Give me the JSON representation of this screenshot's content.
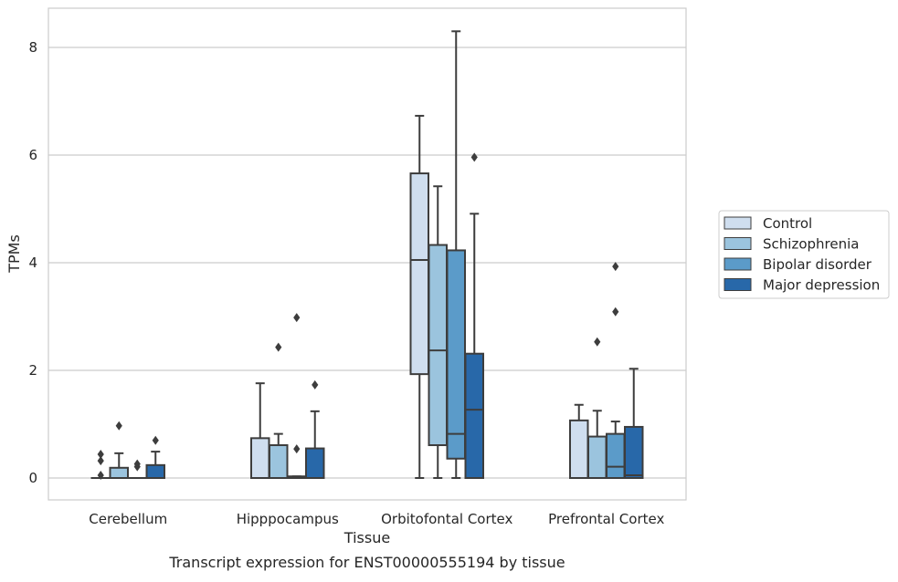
{
  "chart_data": {
    "type": "box",
    "caption": "Transcript expression for ENST00000555194 by tissue",
    "xlabel": "Tissue",
    "ylabel": "TPMs",
    "ylim": [
      -0.4,
      8.75
    ],
    "yticks": [
      0,
      2,
      4,
      6,
      8
    ],
    "grid": "horizontal",
    "legend_position": "right",
    "categories": [
      "Cerebellum",
      "Hipppocampus",
      "Orbitofontal Cortex",
      "Prefrontal Cortex"
    ],
    "series": [
      {
        "name": "Control",
        "color": "#cfdeef",
        "boxes": [
          {
            "q1": 0,
            "median": 0,
            "q3": 0,
            "whisker_low": 0,
            "whisker_high": 0,
            "outliers": [
              0.05,
              0.32,
              0.44
            ]
          },
          {
            "q1": 0,
            "median": 0,
            "q3": 0.74,
            "whisker_low": 0,
            "whisker_high": 1.76,
            "outliers": []
          },
          {
            "q1": 1.93,
            "median": 4.05,
            "q3": 5.66,
            "whisker_low": 0,
            "whisker_high": 6.73,
            "outliers": []
          },
          {
            "q1": 0,
            "median": 0,
            "q3": 1.07,
            "whisker_low": 0,
            "whisker_high": 1.36,
            "outliers": []
          }
        ]
      },
      {
        "name": "Schizophrenia",
        "color": "#9bc4de",
        "boxes": [
          {
            "q1": 0,
            "median": 0,
            "q3": 0.19,
            "whisker_low": 0,
            "whisker_high": 0.46,
            "outliers": [
              0.97
            ]
          },
          {
            "q1": 0,
            "median": 0,
            "q3": 0.61,
            "whisker_low": 0,
            "whisker_high": 0.82,
            "outliers": [
              2.43
            ]
          },
          {
            "q1": 0.61,
            "median": 2.37,
            "q3": 4.33,
            "whisker_low": 0,
            "whisker_high": 5.42,
            "outliers": []
          },
          {
            "q1": 0,
            "median": 0,
            "q3": 0.77,
            "whisker_low": 0,
            "whisker_high": 1.25,
            "outliers": [
              2.53
            ]
          }
        ]
      },
      {
        "name": "Bipolar disorder",
        "color": "#5b9bc9",
        "boxes": [
          {
            "q1": 0,
            "median": 0,
            "q3": 0,
            "whisker_low": 0,
            "whisker_high": 0,
            "outliers": [
              0.21,
              0.26
            ]
          },
          {
            "q1": 0,
            "median": 0.02,
            "q3": 0.03,
            "whisker_low": 0,
            "whisker_high": 0.03,
            "outliers": [
              0.54,
              2.98
            ]
          },
          {
            "q1": 0.36,
            "median": 0.82,
            "q3": 4.23,
            "whisker_low": 0,
            "whisker_high": 8.3,
            "outliers": []
          },
          {
            "q1": 0,
            "median": 0.21,
            "q3": 0.82,
            "whisker_low": 0,
            "whisker_high": 1.05,
            "outliers": [
              3.09,
              3.93
            ]
          }
        ]
      },
      {
        "name": "Major depression",
        "color": "#2868a9",
        "boxes": [
          {
            "q1": 0,
            "median": 0,
            "q3": 0.24,
            "whisker_low": 0,
            "whisker_high": 0.49,
            "outliers": [
              0.7
            ]
          },
          {
            "q1": 0,
            "median": 0,
            "q3": 0.55,
            "whisker_low": 0,
            "whisker_high": 1.24,
            "outliers": [
              1.73
            ]
          },
          {
            "q1": 0,
            "median": 1.27,
            "q3": 2.31,
            "whisker_low": 0,
            "whisker_high": 4.91,
            "outliers": [
              5.96
            ]
          },
          {
            "q1": 0,
            "median": 0.05,
            "q3": 0.95,
            "whisker_low": 0,
            "whisker_high": 2.03,
            "outliers": []
          }
        ]
      }
    ]
  }
}
